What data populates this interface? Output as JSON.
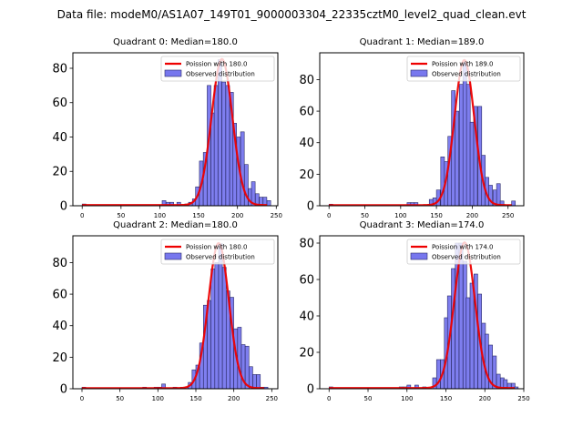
{
  "figure": {
    "suptitle": "Data file: modeM0/AS1A07_149T01_9000003304_22335cztM0_level2_quad_clean.evt"
  },
  "chart_data": [
    {
      "type": "bar",
      "title": "Quadrant 0: Median=180.0",
      "median": 180.0,
      "xlabel": "",
      "ylabel": "",
      "xlim": [
        -12,
        252
      ],
      "ylim": [
        0,
        89
      ],
      "xticks": [
        0,
        50,
        100,
        150,
        200,
        250
      ],
      "yticks": [
        0,
        20,
        40,
        60,
        80
      ],
      "bin_width": 4.8,
      "legend": {
        "placement": "upper-right",
        "entries": [
          "Poission with 180.0",
          "Observed distribution"
        ]
      },
      "bins": [
        [
          0,
          1
        ],
        [
          103,
          3
        ],
        [
          108,
          2
        ],
        [
          113,
          2
        ],
        [
          122,
          2
        ],
        [
          132,
          1
        ],
        [
          137,
          2
        ],
        [
          142,
          4
        ],
        [
          146,
          11
        ],
        [
          151,
          26
        ],
        [
          156,
          31
        ],
        [
          161,
          70
        ],
        [
          166,
          54
        ],
        [
          170,
          70
        ],
        [
          175,
          85
        ],
        [
          180,
          72
        ],
        [
          185,
          70
        ],
        [
          190,
          66
        ],
        [
          194,
          48
        ],
        [
          199,
          40
        ],
        [
          204,
          43
        ],
        [
          209,
          24
        ],
        [
          214,
          10
        ],
        [
          218,
          14
        ],
        [
          223,
          7
        ],
        [
          228,
          5
        ],
        [
          233,
          5
        ],
        [
          238,
          3
        ]
      ],
      "poisson": {
        "mean": 180.0,
        "peak": 85
      }
    },
    {
      "type": "bar",
      "title": "Quadrant 1: Median=189.0",
      "median": 189.0,
      "xlabel": "",
      "ylabel": "",
      "xlim": [
        -13,
        272
      ],
      "ylim": [
        0,
        97
      ],
      "xticks": [
        0,
        50,
        100,
        150,
        200,
        250
      ],
      "yticks": [
        0,
        20,
        40,
        60,
        80
      ],
      "bin_width": 5.2,
      "legend": {
        "placement": "upper-right",
        "entries": [
          "Poission with 189.0",
          "Observed distribution"
        ]
      },
      "bins": [
        [
          0,
          1
        ],
        [
          109,
          2
        ],
        [
          114,
          2
        ],
        [
          119,
          2
        ],
        [
          140,
          4
        ],
        [
          145,
          5
        ],
        [
          150,
          10
        ],
        [
          156,
          31
        ],
        [
          161,
          28
        ],
        [
          166,
          44
        ],
        [
          171,
          73
        ],
        [
          176,
          60
        ],
        [
          182,
          77
        ],
        [
          187,
          91
        ],
        [
          192,
          77
        ],
        [
          197,
          53
        ],
        [
          202,
          63
        ],
        [
          208,
          63
        ],
        [
          213,
          32
        ],
        [
          218,
          18
        ],
        [
          223,
          13
        ],
        [
          229,
          10
        ],
        [
          234,
          14
        ],
        [
          239,
          3
        ],
        [
          255,
          3
        ]
      ],
      "poisson": {
        "mean": 189.0,
        "peak": 92
      }
    },
    {
      "type": "bar",
      "title": "Quadrant 2: Median=180.0",
      "median": 180.0,
      "xlabel": "",
      "ylabel": "",
      "xlim": [
        -12,
        258
      ],
      "ylim": [
        0,
        97
      ],
      "xticks": [
        0,
        50,
        100,
        150,
        200,
        250
      ],
      "yticks": [
        0,
        20,
        40,
        60,
        80
      ],
      "bin_width": 4.9,
      "legend": {
        "placement": "upper-right",
        "entries": [
          "Poission with 180.0",
          "Observed distribution"
        ]
      },
      "bins": [
        [
          0,
          1
        ],
        [
          80,
          1
        ],
        [
          95,
          1
        ],
        [
          100,
          1
        ],
        [
          105,
          3
        ],
        [
          120,
          1
        ],
        [
          130,
          1
        ],
        [
          135,
          1
        ],
        [
          140,
          4
        ],
        [
          145,
          12
        ],
        [
          150,
          15
        ],
        [
          155,
          29
        ],
        [
          160,
          53
        ],
        [
          165,
          56
        ],
        [
          170,
          76
        ],
        [
          175,
          80
        ],
        [
          180,
          92
        ],
        [
          185,
          77
        ],
        [
          190,
          62
        ],
        [
          195,
          58
        ],
        [
          200,
          38
        ],
        [
          205,
          39
        ],
        [
          210,
          28
        ],
        [
          215,
          27
        ],
        [
          220,
          14
        ],
        [
          225,
          9
        ],
        [
          230,
          9
        ],
        [
          235,
          1
        ],
        [
          240,
          1
        ]
      ],
      "poisson": {
        "mean": 180.0,
        "peak": 92
      }
    },
    {
      "type": "bar",
      "title": "Quadrant 3: Median=174.0",
      "median": 174.0,
      "xlabel": "",
      "ylabel": "",
      "xlim": [
        -12,
        250
      ],
      "ylim": [
        0,
        84
      ],
      "xticks": [
        0,
        50,
        100,
        150,
        200,
        250
      ],
      "yticks": [
        0,
        20,
        40,
        60,
        80
      ],
      "bin_width": 4.8,
      "legend": {
        "placement": "upper-right",
        "entries": [
          "Poission with 174.0",
          "Observed distribution"
        ]
      },
      "bins": [
        [
          0,
          1
        ],
        [
          90,
          1
        ],
        [
          95,
          1
        ],
        [
          100,
          2
        ],
        [
          110,
          2
        ],
        [
          120,
          1
        ],
        [
          133,
          6
        ],
        [
          138,
          16
        ],
        [
          143,
          16
        ],
        [
          148,
          39
        ],
        [
          152,
          51
        ],
        [
          157,
          66
        ],
        [
          162,
          80
        ],
        [
          167,
          80
        ],
        [
          172,
          70
        ],
        [
          176,
          50
        ],
        [
          181,
          58
        ],
        [
          186,
          63
        ],
        [
          191,
          52
        ],
        [
          196,
          36
        ],
        [
          200,
          30
        ],
        [
          205,
          24
        ],
        [
          210,
          18
        ],
        [
          215,
          8
        ],
        [
          220,
          6
        ],
        [
          224,
          5
        ],
        [
          229,
          3
        ],
        [
          234,
          3
        ],
        [
          238,
          1
        ]
      ],
      "poisson": {
        "mean": 174.0,
        "peak": 80
      }
    }
  ],
  "colors": {
    "bar_fill": "#7777ee",
    "bar_edge": "#2a2a66",
    "poisson_line": "#ee0000"
  }
}
